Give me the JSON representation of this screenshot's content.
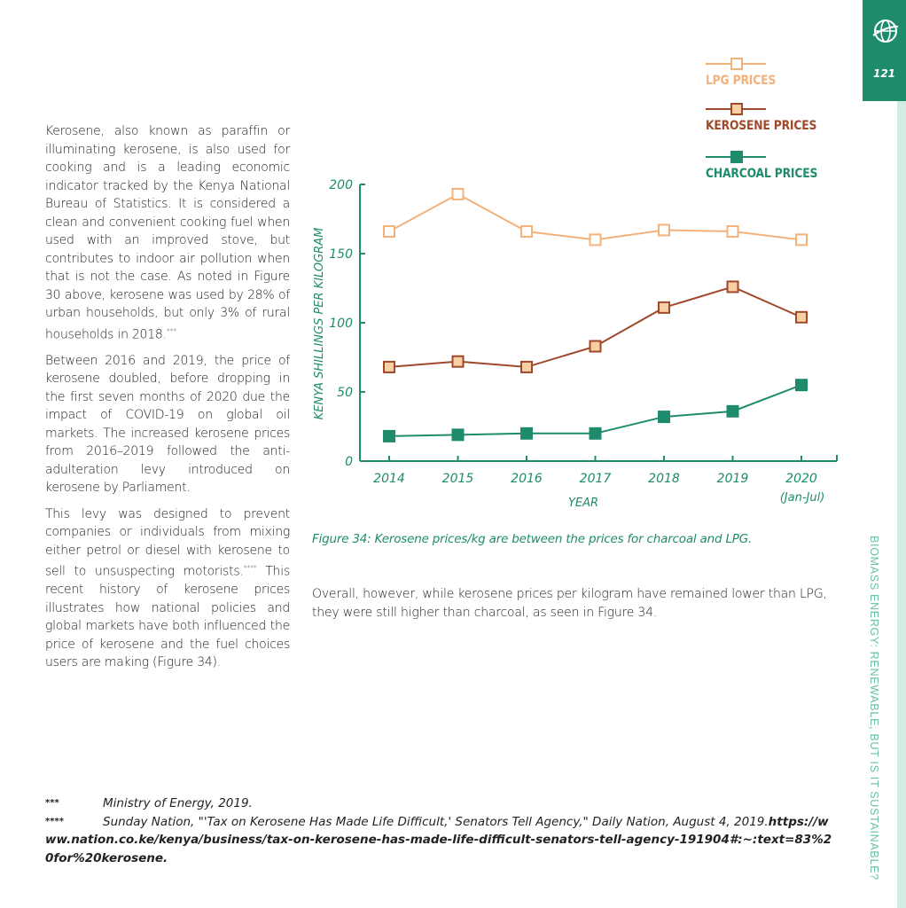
{
  "page": {
    "number": "121",
    "side_title": "BIOMASS ENERGY: RENEWABLE, BUT IS IT SUSTAINABLE?"
  },
  "colors": {
    "green": "#1e8c6c",
    "lpg": "#f4b27a",
    "kerosene": "#a0482a",
    "kerosene_fill": "#f9cfa5",
    "charcoal": "#1e8c6c"
  },
  "left_column": {
    "p1": "Kerosene, also known as paraffin or illuminating kerosene, is also used for cooking and is a leading economic indicator tracked by the Kenya National Bureau of Statistics. It is considered a clean and convenient cooking fuel when used with an improved stove, but contributes to indoor air pollution when that is not the case. As noted in Figure 30 above, kerosene was used by 28% of urban households, but only 3% of rural households in 2018.",
    "p1_ref": "***",
    "p2": "Between 2016 and 2019, the price of kerosene doubled, before dropping in the first seven months of 2020 due the impact of COVID-19 on global oil markets. The increased kerosene prices from 2016–2019 followed the anti-adulteration levy introduced on kerosene by Parliament.",
    "p3a": "This levy was designed to prevent companies or individuals from mixing either petrol or diesel with kerosene to sell to unsuspecting motorists.",
    "p3_ref": "****",
    "p3b": " This recent history of kerosene prices illustrates how national policies and global markets have both influenced the price of kerosene and the fuel choices users are making (Figure 34)."
  },
  "legend": {
    "lpg": "LPG PRICES",
    "kerosene": "KEROSENE PRICES",
    "charcoal": "CHARCOAL PRICES"
  },
  "chart_data": {
    "type": "line",
    "xlabel": "YEAR",
    "ylabel": "KENYA SHILLINGS PER KILOGRAM",
    "categories": [
      "2014",
      "2015",
      "2016",
      "2017",
      "2018",
      "2019",
      "2020"
    ],
    "category_sublabels": [
      "",
      "",
      "",
      "",
      "",
      "",
      "(Jan-Jul)"
    ],
    "ylim": [
      0,
      200
    ],
    "yticks": [
      0,
      50,
      100,
      150,
      200
    ],
    "grid": false,
    "legend_position": "top-right",
    "series": [
      {
        "name": "LPG PRICES",
        "values": [
          166,
          193,
          166,
          160,
          167,
          166,
          160
        ]
      },
      {
        "name": "KEROSENE PRICES",
        "values": [
          68,
          72,
          68,
          83,
          111,
          126,
          104
        ]
      },
      {
        "name": "CHARCOAL PRICES",
        "values": [
          18,
          19,
          20,
          20,
          32,
          36,
          55
        ]
      }
    ]
  },
  "caption": "Figure 34: Kerosene prices/kg are between the prices for charcoal and LPG.",
  "right_text": "Overall, however, while kerosene prices per kilogram have remained lower than LPG, they were still higher than charcoal, as seen in Figure 34.",
  "footnotes": {
    "f1_mark": "***",
    "f1_text": "Ministry of Energy, 2019.",
    "f2_mark": "****",
    "f2_text": "Sunday Nation, \"'Tax on Kerosene Has Made Life Difficult,' Senators Tell Agency,\" Daily Nation, August 4, 2019.",
    "f2_url": "https://www.nation.co.ke/kenya/business/tax-on-kerosene-has-made-life-difficult-senators-tell-agency-191904#:~:text=83%20for%20kerosene."
  }
}
